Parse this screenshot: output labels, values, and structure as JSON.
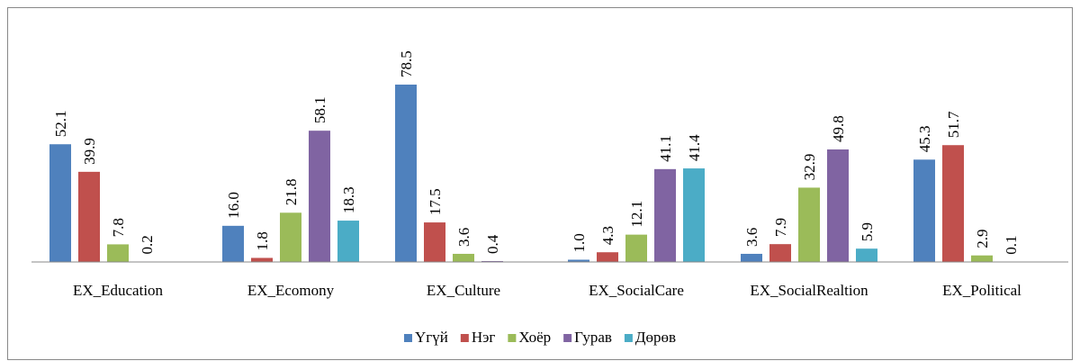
{
  "chart_data": {
    "type": "bar",
    "categories": [
      "EX_Education",
      "EX_Ecomony",
      "EX_Culture",
      "EX_SocialCare",
      "EX_SocialRealtion",
      "EX_Political"
    ],
    "series": [
      {
        "name": "Үгүй",
        "color": "#4f81bd",
        "values": [
          52.1,
          16.0,
          78.5,
          1.0,
          3.6,
          45.3
        ],
        "value_labels": [
          "52.1",
          "16.0",
          "78.5",
          "1.0",
          "3.6",
          "45.3"
        ]
      },
      {
        "name": "Нэг",
        "color": "#c0504d",
        "values": [
          39.9,
          1.8,
          17.5,
          4.3,
          7.9,
          51.7
        ],
        "value_labels": [
          "39.9",
          "1.8",
          "17.5",
          "4.3",
          "7.9",
          "51.7"
        ]
      },
      {
        "name": "Хоёр",
        "color": "#9bbb59",
        "values": [
          7.8,
          21.8,
          3.6,
          12.1,
          32.9,
          2.9
        ],
        "value_labels": [
          "7.8",
          "21.8",
          "3.6",
          "12.1",
          "32.9",
          "2.9"
        ]
      },
      {
        "name": "Гурав",
        "color": "#8064a2",
        "values": [
          0.2,
          58.1,
          0.4,
          41.1,
          49.8,
          0.1
        ],
        "value_labels": [
          "0.2",
          "58.1",
          "0.4",
          "41.1",
          "49.8",
          "0.1"
        ]
      },
      {
        "name": "Дөрөв",
        "color": "#4bacc6",
        "values": [
          null,
          18.3,
          null,
          41.4,
          5.9,
          null
        ],
        "value_labels": [
          null,
          "18.3",
          null,
          "41.4",
          "5.9",
          null
        ]
      }
    ],
    "ylim": [
      0,
      100
    ],
    "legend": "bottom"
  }
}
